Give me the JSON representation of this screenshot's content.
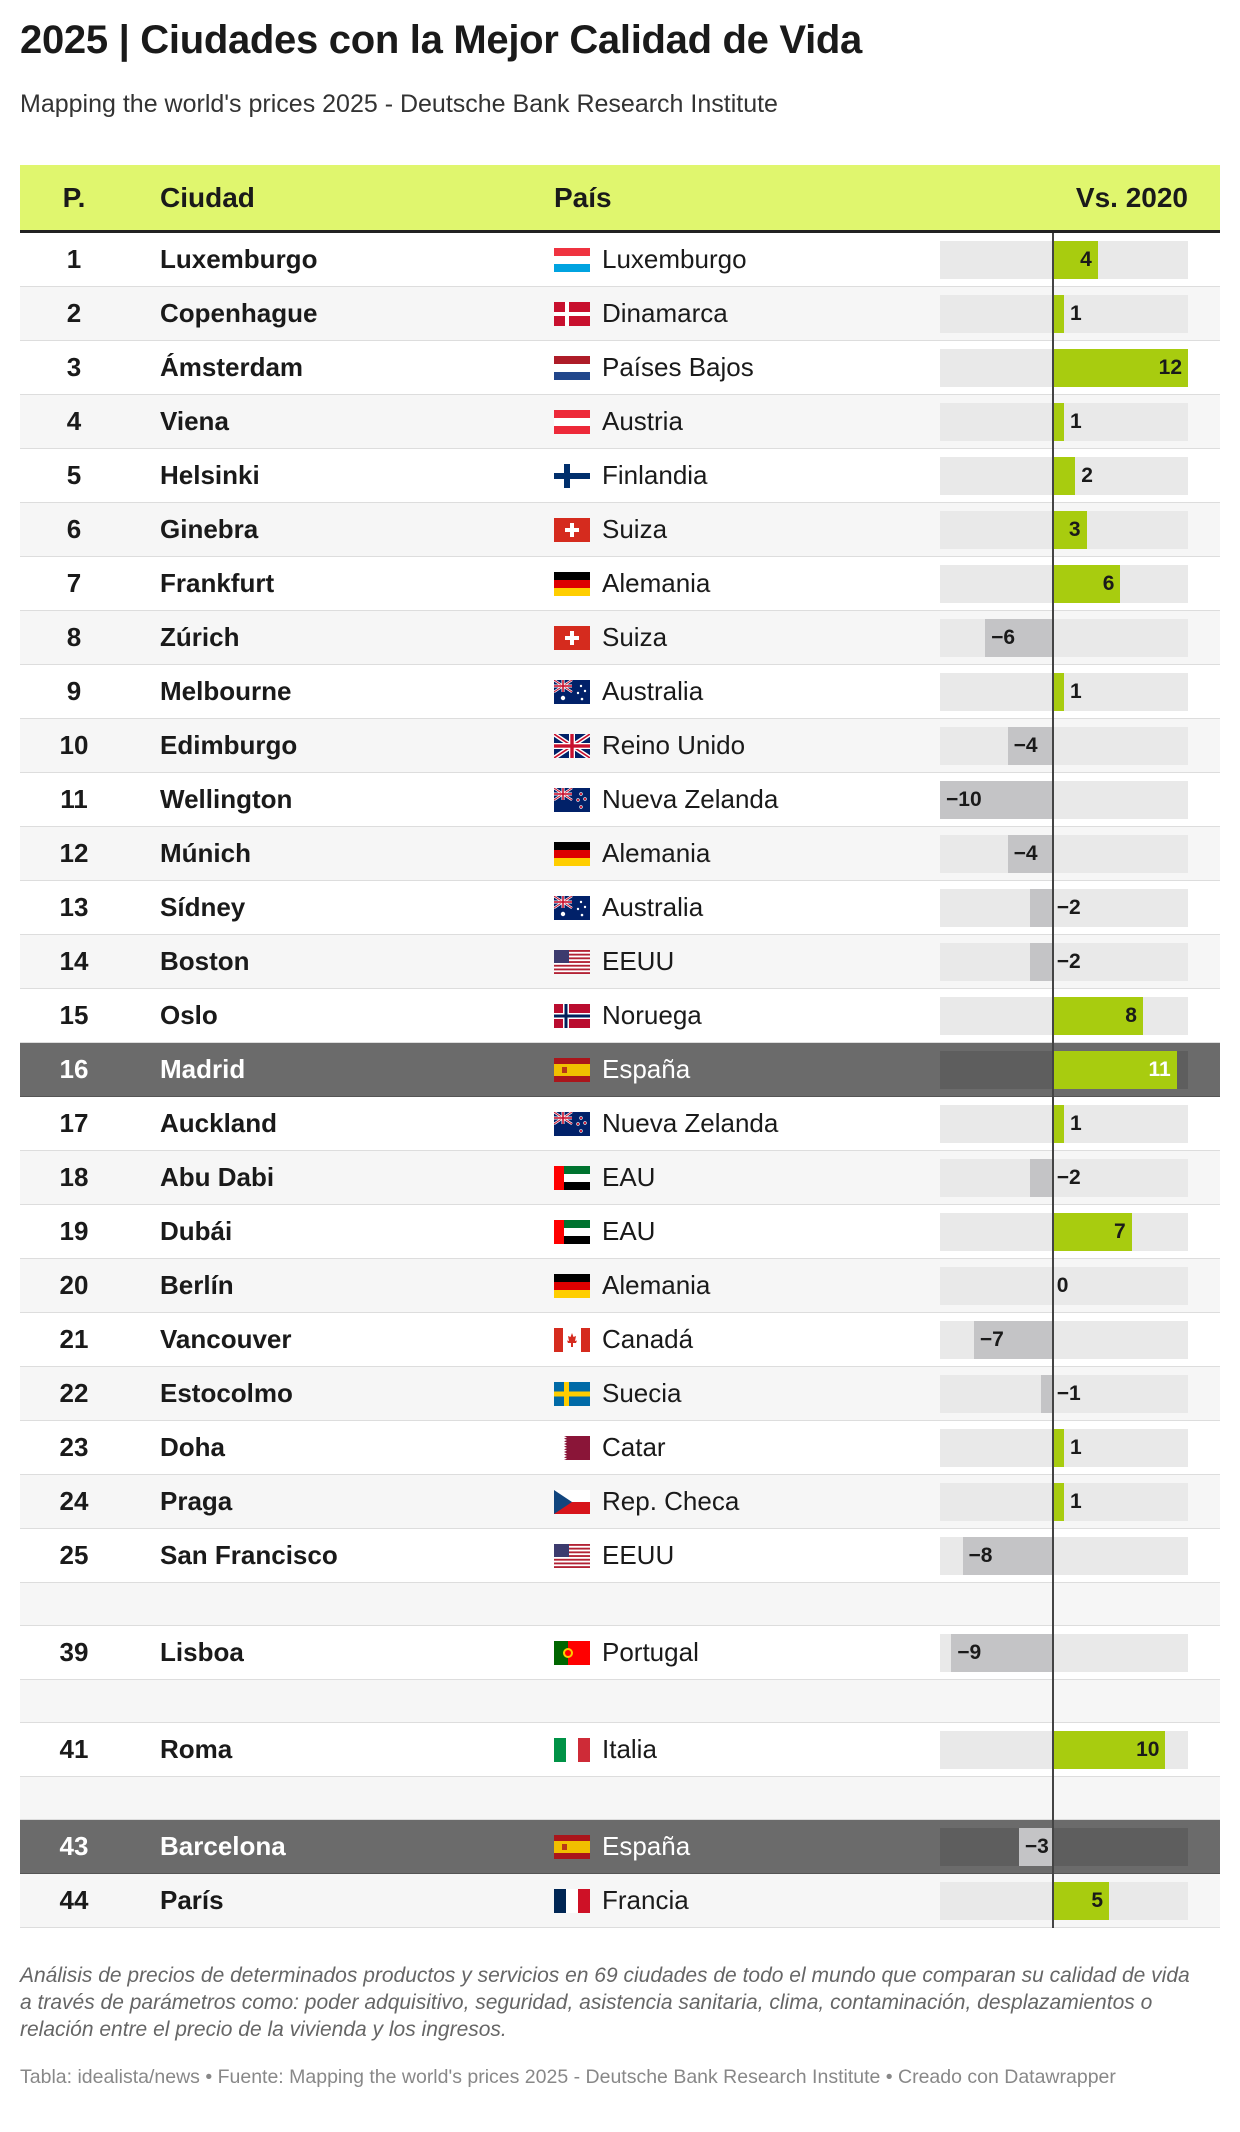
{
  "title": "2025 | Ciudades con la Mejor Calidad de Vida",
  "subtitle": "Mapping the world's prices 2025 - Deutsche Bank Research Institute",
  "columns": {
    "rank": "P.",
    "city": "Ciudad",
    "country": "País",
    "change": "Vs. 2020"
  },
  "colors": {
    "header": "#e0f66e",
    "positive": "#a8cc0f",
    "negative": "#c4c4c6",
    "highlight": "#6b6b6b"
  },
  "chart_data": {
    "type": "table",
    "change_range": [
      -10,
      12
    ],
    "rows": [
      {
        "rank": "1",
        "city": "Luxemburgo",
        "country": "Luxemburgo",
        "flag": "luxembourg-flag-icon",
        "change": 4
      },
      {
        "rank": "2",
        "city": "Copenhague",
        "country": "Dinamarca",
        "flag": "denmark-flag-icon",
        "change": 1
      },
      {
        "rank": "3",
        "city": "Ámsterdam",
        "country": "Países Bajos",
        "flag": "netherlands-flag-icon",
        "change": 12
      },
      {
        "rank": "4",
        "city": "Viena",
        "country": "Austria",
        "flag": "austria-flag-icon",
        "change": 1
      },
      {
        "rank": "5",
        "city": "Helsinki",
        "country": "Finlandia",
        "flag": "finland-flag-icon",
        "change": 2
      },
      {
        "rank": "6",
        "city": "Ginebra",
        "country": "Suiza",
        "flag": "switzerland-flag-icon",
        "change": 3
      },
      {
        "rank": "7",
        "city": "Frankfurt",
        "country": "Alemania",
        "flag": "germany-flag-icon",
        "change": 6
      },
      {
        "rank": "8",
        "city": "Zúrich",
        "country": "Suiza",
        "flag": "switzerland-flag-icon",
        "change": -6
      },
      {
        "rank": "9",
        "city": "Melbourne",
        "country": "Australia",
        "flag": "australia-flag-icon",
        "change": 1
      },
      {
        "rank": "10",
        "city": "Edimburgo",
        "country": "Reino Unido",
        "flag": "uk-flag-icon",
        "change": -4
      },
      {
        "rank": "11",
        "city": "Wellington",
        "country": "Nueva Zelanda",
        "flag": "new-zealand-flag-icon",
        "change": -10
      },
      {
        "rank": "12",
        "city": "Múnich",
        "country": "Alemania",
        "flag": "germany-flag-icon",
        "change": -4
      },
      {
        "rank": "13",
        "city": "Sídney",
        "country": "Australia",
        "flag": "australia-flag-icon",
        "change": -2
      },
      {
        "rank": "14",
        "city": "Boston",
        "country": "EEUU",
        "flag": "usa-flag-icon",
        "change": -2
      },
      {
        "rank": "15",
        "city": "Oslo",
        "country": "Noruega",
        "flag": "norway-flag-icon",
        "change": 8
      },
      {
        "rank": "16",
        "city": "Madrid",
        "country": "España",
        "flag": "spain-flag-icon",
        "change": 11,
        "highlight": true
      },
      {
        "rank": "17",
        "city": "Auckland",
        "country": "Nueva Zelanda",
        "flag": "new-zealand-flag-icon",
        "change": 1
      },
      {
        "rank": "18",
        "city": "Abu Dabi",
        "country": "EAU",
        "flag": "uae-flag-icon",
        "change": -2
      },
      {
        "rank": "19",
        "city": "Dubái",
        "country": "EAU",
        "flag": "uae-flag-icon",
        "change": 7
      },
      {
        "rank": "20",
        "city": "Berlín",
        "country": "Alemania",
        "flag": "germany-flag-icon",
        "change": 0
      },
      {
        "rank": "21",
        "city": "Vancouver",
        "country": "Canadá",
        "flag": "canada-flag-icon",
        "change": -7
      },
      {
        "rank": "22",
        "city": "Estocolmo",
        "country": "Suecia",
        "flag": "sweden-flag-icon",
        "change": -1
      },
      {
        "rank": "23",
        "city": "Doha",
        "country": "Catar",
        "flag": "qatar-flag-icon",
        "change": 1
      },
      {
        "rank": "24",
        "city": "Praga",
        "country": "Rep. Checa",
        "flag": "czech-flag-icon",
        "change": 1
      },
      {
        "rank": "25",
        "city": "San Francisco",
        "country": "EEUU",
        "flag": "usa-flag-icon",
        "change": -8
      },
      {
        "gap": true
      },
      {
        "rank": "39",
        "city": "Lisboa",
        "country": "Portugal",
        "flag": "portugal-flag-icon",
        "change": -9
      },
      {
        "gap": true
      },
      {
        "rank": "41",
        "city": "Roma",
        "country": "Italia",
        "flag": "italy-flag-icon",
        "change": 10
      },
      {
        "gap": true
      },
      {
        "rank": "43",
        "city": "Barcelona",
        "country": "España",
        "flag": "spain-flag-icon",
        "change": -3,
        "highlight": true
      },
      {
        "rank": "44",
        "city": "París",
        "country": "Francia",
        "flag": "france-flag-icon",
        "change": 5
      }
    ]
  },
  "note": "Análisis de precios de determinados productos y servicios en 69 ciudades de todo el mundo que comparan su calidad de vida a través de parámetros como: poder adquisitivo, seguridad, asistencia sanitaria, clima, contaminación, desplazamientos o relación entre el precio de la vivienda y los ingresos.",
  "source": "Tabla: idealista/news • Fuente: Mapping the world's prices 2025 - Deutsche Bank Research Institute • Creado con Datawrapper"
}
